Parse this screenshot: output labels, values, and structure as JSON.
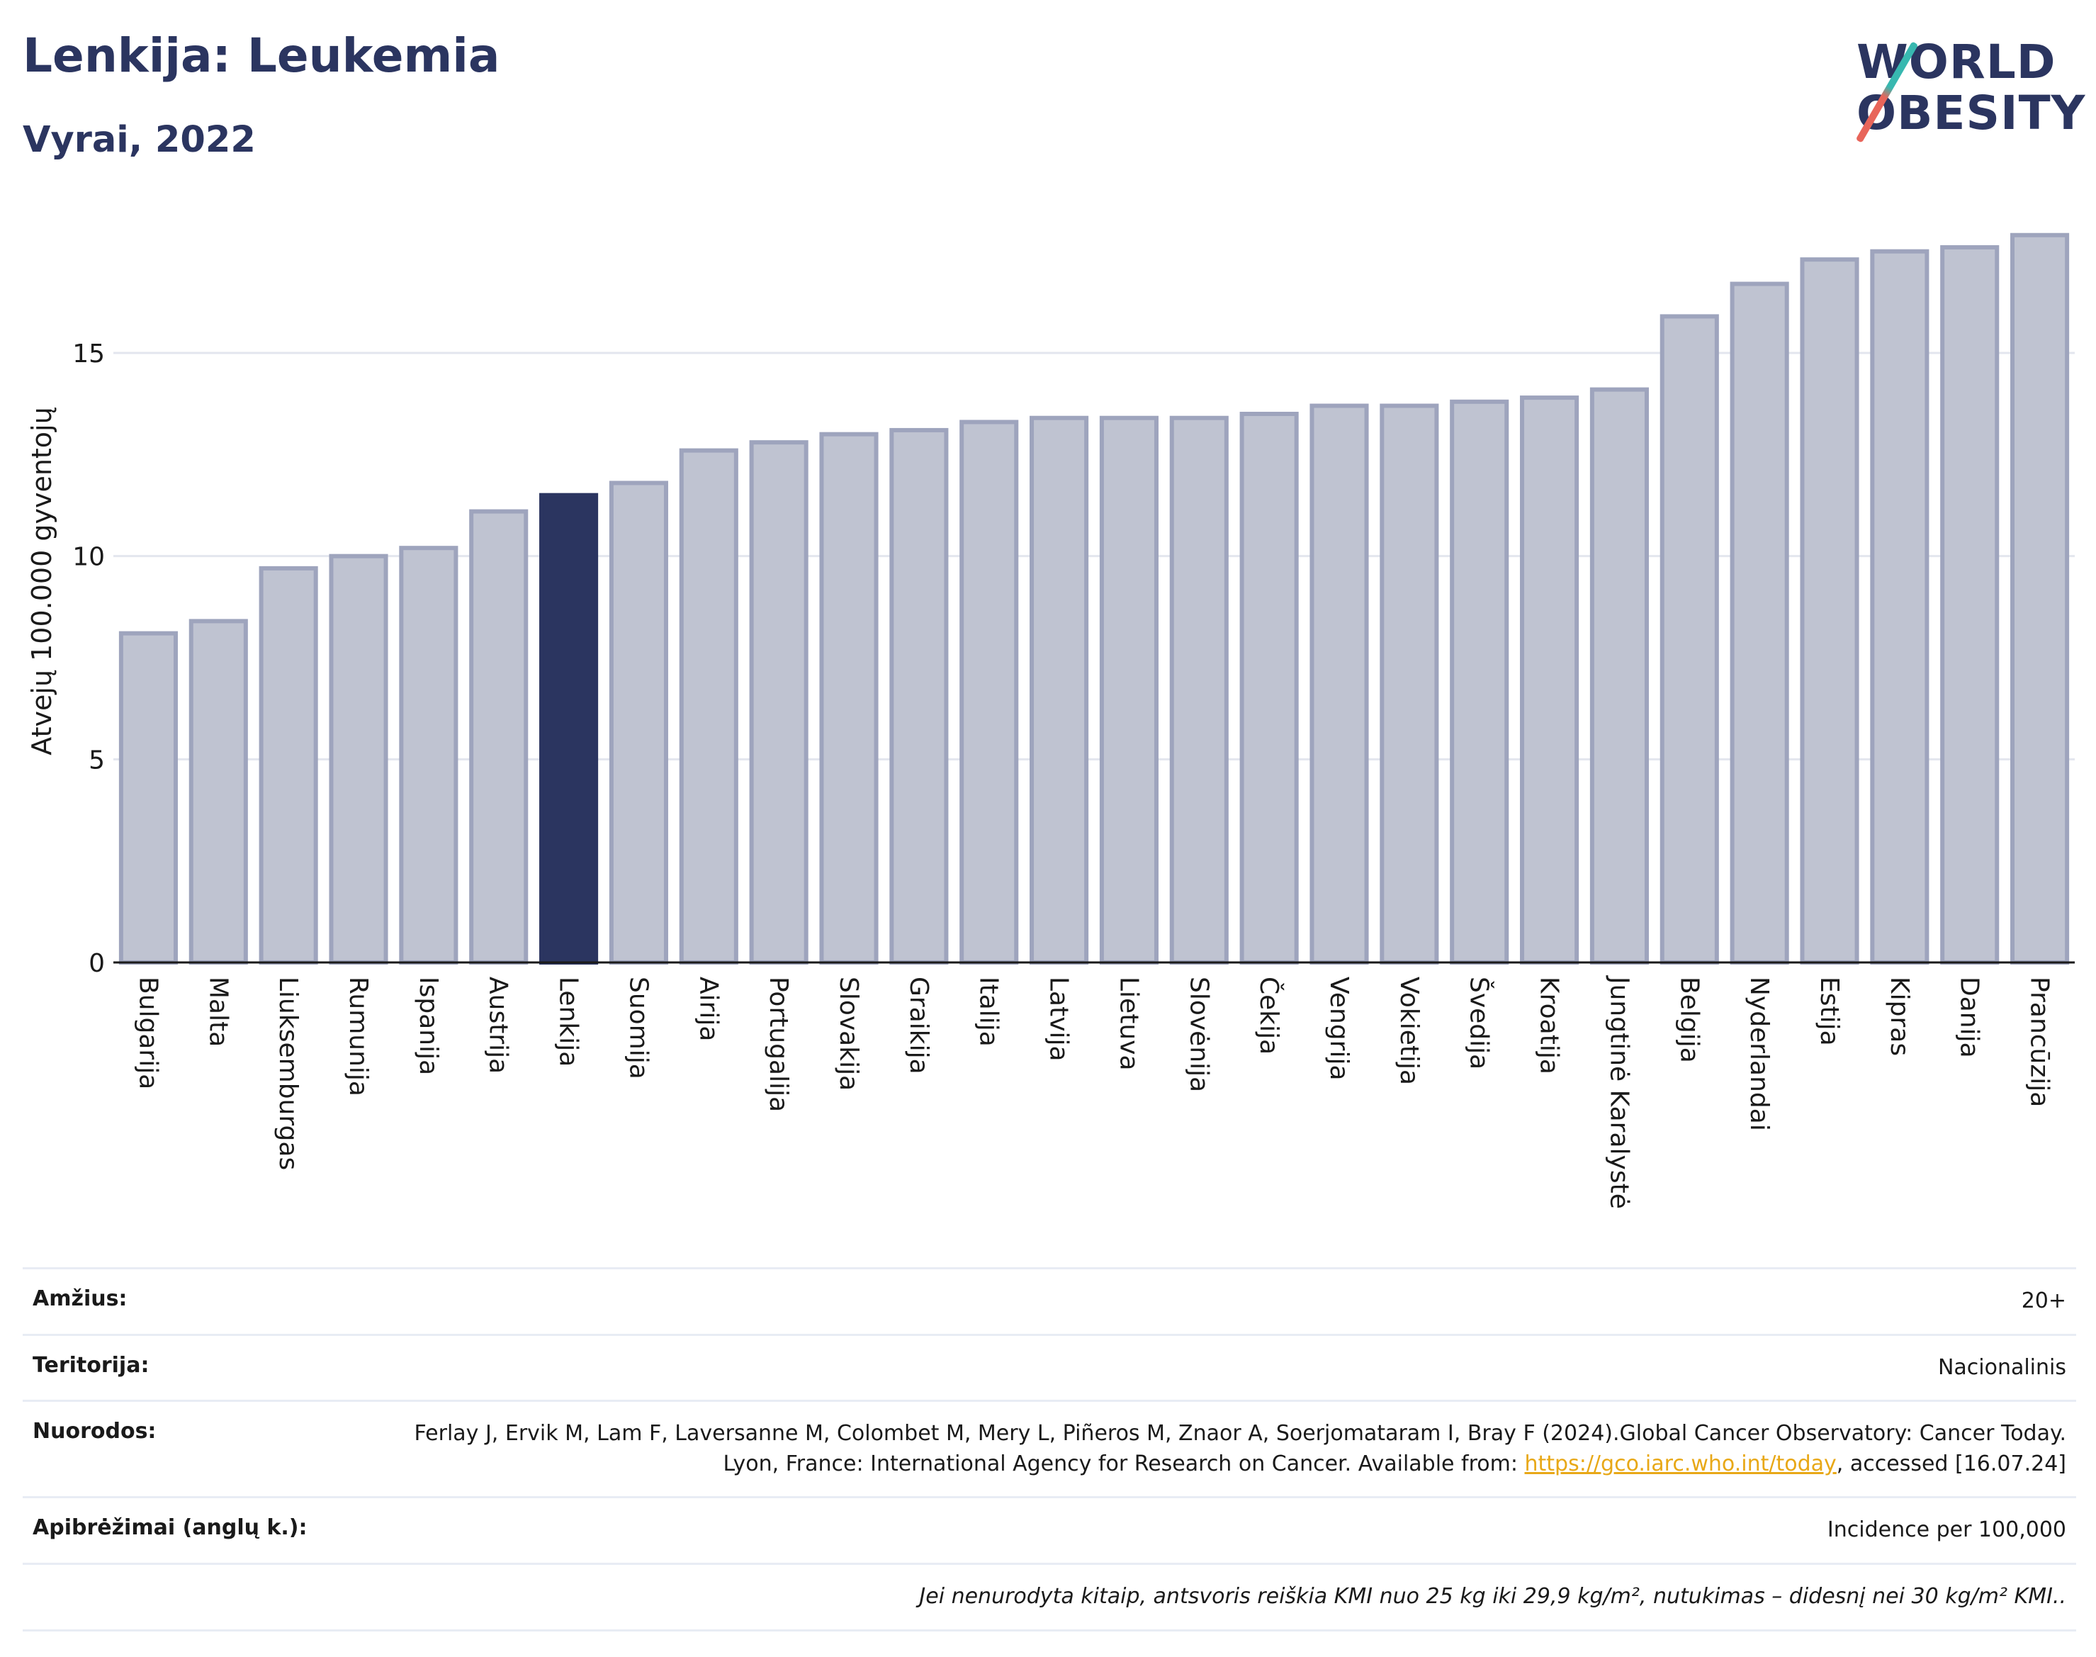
{
  "title": "Lenkija: Leukemia",
  "subtitle": "Vyrai, 2022",
  "logo": {
    "line1": "WORLD",
    "line2": "OBESITY"
  },
  "colors": {
    "bar": "#bfc3d1",
    "bar_border": "#9ea4bd",
    "highlight": "#2b3560",
    "axis": "#1a1a1a",
    "grid": "#e3e6ee"
  },
  "chart_data": {
    "type": "bar",
    "title": "Lenkija: Leukemia",
    "subtitle": "Vyrai, 2022",
    "ylabel": "Atvejų 100.000 gyventojų",
    "xlabel": "",
    "ylim": [
      0,
      18
    ],
    "yticks": [
      0,
      5,
      10,
      15
    ],
    "grid": true,
    "highlight": "Lenkija",
    "categories": [
      "Bulgarija",
      "Malta",
      "Liuksemburgas",
      "Rumunija",
      "Ispanija",
      "Austrija",
      "Lenkija",
      "Suomija",
      "Airija",
      "Portugalija",
      "Slovakija",
      "Graikija",
      "Italija",
      "Latvija",
      "Lietuva",
      "Slovėnija",
      "Čekija",
      "Vengrija",
      "Vokietija",
      "Švedija",
      "Kroatija",
      "Jungtinė Karalystė",
      "Belgija",
      "Nyderlandai",
      "Estija",
      "Kipras",
      "Danija",
      "Prancūzija"
    ],
    "values": [
      8.1,
      8.4,
      9.7,
      10.0,
      10.2,
      11.1,
      11.5,
      11.8,
      12.6,
      12.8,
      13.0,
      13.1,
      13.3,
      13.4,
      13.4,
      13.4,
      13.5,
      13.7,
      13.7,
      13.8,
      13.9,
      14.1,
      15.9,
      16.7,
      17.3,
      17.5,
      17.6,
      17.9
    ]
  },
  "meta": {
    "age_label": "Amžius:",
    "age_value": "20+",
    "territory_label": "Teritorija:",
    "territory_value": "Nacionalinis",
    "refs_label": "Nuorodos:",
    "refs_text1": "Ferlay J, Ervik M, Lam F, Laversanne M, Colombet M, Mery L, Piñeros M, Znaor A, Soerjomataram I, Bray F (2024).Global Cancer Observatory: Cancer Today. Lyon, France: International Agency for Research on Cancer. Available from: ",
    "refs_link": "https://gco.iarc.who.int/today",
    "refs_text2": ", accessed [16.07.24]",
    "defs_label": "Apibrėžimai (anglų k.):",
    "defs_value": "Incidence per 100,000",
    "note": "Jei nenurodyta kitaip, antsvoris reiškia KMI nuo 25 kg iki 29,9 kg/m², nutukimas – didesnį nei 30 kg/m² KMI.."
  }
}
